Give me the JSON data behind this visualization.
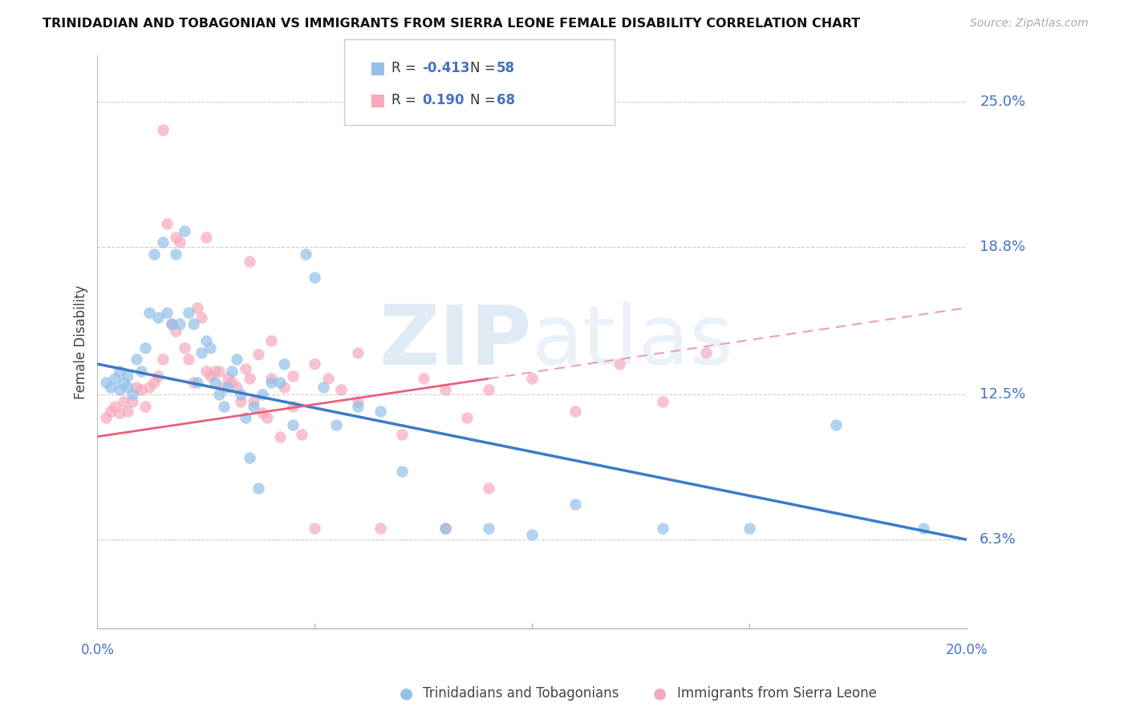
{
  "title": "TRINIDADIAN AND TOBAGONIAN VS IMMIGRANTS FROM SIERRA LEONE FEMALE DISABILITY CORRELATION CHART",
  "source": "Source: ZipAtlas.com",
  "ylabel": "Female Disability",
  "yticks": [
    0.063,
    0.125,
    0.188,
    0.25
  ],
  "ytick_labels": [
    "6.3%",
    "12.5%",
    "18.8%",
    "25.0%"
  ],
  "xmin": 0.0,
  "xmax": 0.2,
  "ymin": 0.025,
  "ymax": 0.27,
  "label1": "Trinidadians and Tobagonians",
  "label2": "Immigrants from Sierra Leone",
  "color1": "#92C0E8",
  "color2": "#F4AABB",
  "line1_color": "#3A7CC7",
  "line2_color": "#E8607A",
  "line2_dash_color": "#E8A0B0",
  "watermark_zip": "ZIP",
  "watermark_atlas": "atlas",
  "title_color": "#111111",
  "axis_label_color": "#4472C4",
  "blue_line_x0": 0.0,
  "blue_line_y0": 0.138,
  "blue_line_x1": 0.2,
  "blue_line_y1": 0.063,
  "pink_line_x0": 0.0,
  "pink_line_y0": 0.107,
  "pink_line_x1": 0.2,
  "pink_line_y1": 0.162,
  "pink_line_solid_x1": 0.09,
  "blue_scatter_x": [
    0.002,
    0.003,
    0.004,
    0.005,
    0.005,
    0.006,
    0.007,
    0.007,
    0.008,
    0.009,
    0.01,
    0.011,
    0.012,
    0.013,
    0.014,
    0.015,
    0.016,
    0.017,
    0.018,
    0.019,
    0.02,
    0.021,
    0.022,
    0.023,
    0.024,
    0.025,
    0.026,
    0.027,
    0.028,
    0.029,
    0.03,
    0.031,
    0.032,
    0.033,
    0.034,
    0.035,
    0.036,
    0.037,
    0.038,
    0.04,
    0.042,
    0.043,
    0.045,
    0.048,
    0.05,
    0.052,
    0.055,
    0.06,
    0.065,
    0.07,
    0.08,
    0.09,
    0.1,
    0.11,
    0.13,
    0.15,
    0.17,
    0.19
  ],
  "blue_scatter_y": [
    0.13,
    0.128,
    0.132,
    0.127,
    0.135,
    0.13,
    0.128,
    0.133,
    0.125,
    0.14,
    0.135,
    0.145,
    0.16,
    0.185,
    0.158,
    0.19,
    0.16,
    0.155,
    0.185,
    0.155,
    0.195,
    0.16,
    0.155,
    0.13,
    0.143,
    0.148,
    0.145,
    0.13,
    0.125,
    0.12,
    0.128,
    0.135,
    0.14,
    0.125,
    0.115,
    0.098,
    0.12,
    0.085,
    0.125,
    0.13,
    0.13,
    0.138,
    0.112,
    0.185,
    0.175,
    0.128,
    0.112,
    0.12,
    0.118,
    0.092,
    0.068,
    0.068,
    0.065,
    0.078,
    0.068,
    0.068,
    0.112,
    0.068
  ],
  "pink_scatter_x": [
    0.002,
    0.003,
    0.004,
    0.005,
    0.006,
    0.007,
    0.008,
    0.009,
    0.01,
    0.011,
    0.012,
    0.013,
    0.014,
    0.015,
    0.016,
    0.017,
    0.018,
    0.019,
    0.02,
    0.021,
    0.022,
    0.023,
    0.024,
    0.025,
    0.026,
    0.027,
    0.028,
    0.029,
    0.03,
    0.031,
    0.032,
    0.033,
    0.034,
    0.035,
    0.036,
    0.037,
    0.038,
    0.039,
    0.04,
    0.042,
    0.043,
    0.045,
    0.047,
    0.05,
    0.053,
    0.056,
    0.06,
    0.065,
    0.07,
    0.075,
    0.08,
    0.085,
    0.09,
    0.1,
    0.11,
    0.12,
    0.13,
    0.14,
    0.015,
    0.018,
    0.025,
    0.035,
    0.04,
    0.05,
    0.06,
    0.08,
    0.09,
    0.045
  ],
  "pink_scatter_y": [
    0.115,
    0.118,
    0.12,
    0.117,
    0.122,
    0.118,
    0.122,
    0.128,
    0.127,
    0.12,
    0.128,
    0.13,
    0.133,
    0.14,
    0.198,
    0.155,
    0.152,
    0.19,
    0.145,
    0.14,
    0.13,
    0.162,
    0.158,
    0.135,
    0.133,
    0.135,
    0.135,
    0.128,
    0.132,
    0.13,
    0.128,
    0.122,
    0.136,
    0.132,
    0.122,
    0.142,
    0.117,
    0.115,
    0.132,
    0.107,
    0.128,
    0.133,
    0.108,
    0.138,
    0.132,
    0.127,
    0.122,
    0.068,
    0.108,
    0.132,
    0.127,
    0.115,
    0.127,
    0.132,
    0.118,
    0.138,
    0.122,
    0.143,
    0.238,
    0.192,
    0.192,
    0.182,
    0.148,
    0.068,
    0.143,
    0.068,
    0.085,
    0.12
  ]
}
